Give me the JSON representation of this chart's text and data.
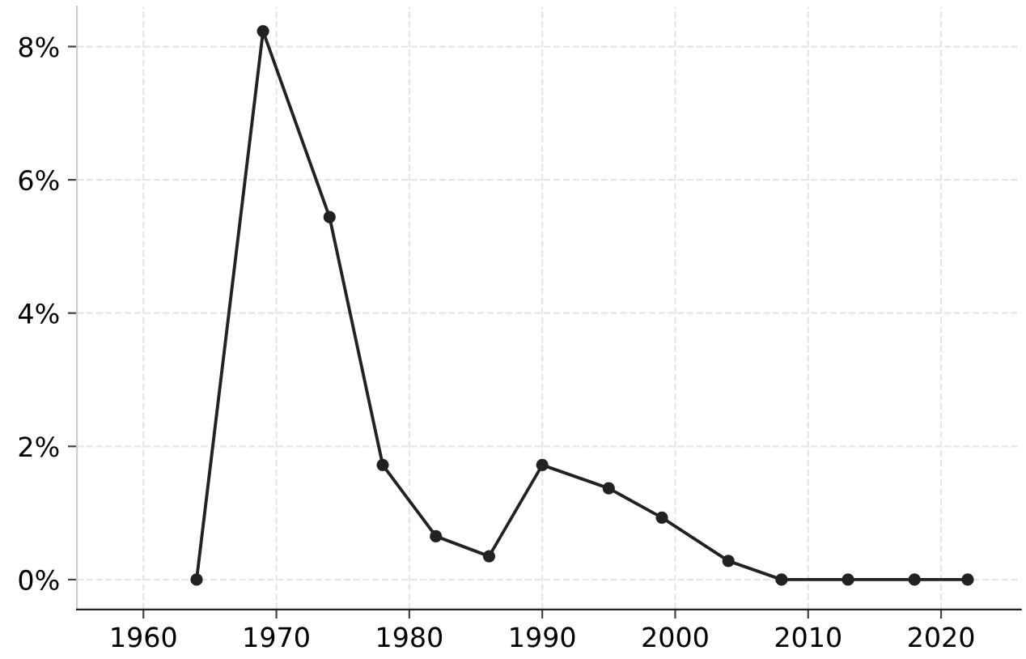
{
  "chart_data": {
    "type": "line",
    "x": [
      1964,
      1969,
      1974,
      1978,
      1982,
      1986,
      1990,
      1995,
      1999,
      2004,
      2008,
      2013,
      2018,
      2022
    ],
    "series": [
      {
        "color": "#222222",
        "values": [
          0,
          8.23,
          5.44,
          1.72,
          0.65,
          0.35,
          1.72,
          1.37,
          0.93,
          0.28,
          0,
          0,
          0,
          0
        ]
      }
    ],
    "xlim": [
      1955,
      2026
    ],
    "xticks": [
      1960,
      1970,
      1980,
      1990,
      2000,
      2010,
      2020
    ],
    "ylim": [
      -0.45,
      8.6
    ],
    "yticks": [
      {
        "value": 0,
        "label": "0%"
      },
      {
        "value": 2,
        "label": "2%"
      },
      {
        "value": 4,
        "label": "4%"
      },
      {
        "value": 6,
        "label": "6%"
      },
      {
        "value": 8,
        "label": "8%"
      }
    ],
    "grid": true,
    "marker": "circle",
    "line_style": "solid"
  }
}
